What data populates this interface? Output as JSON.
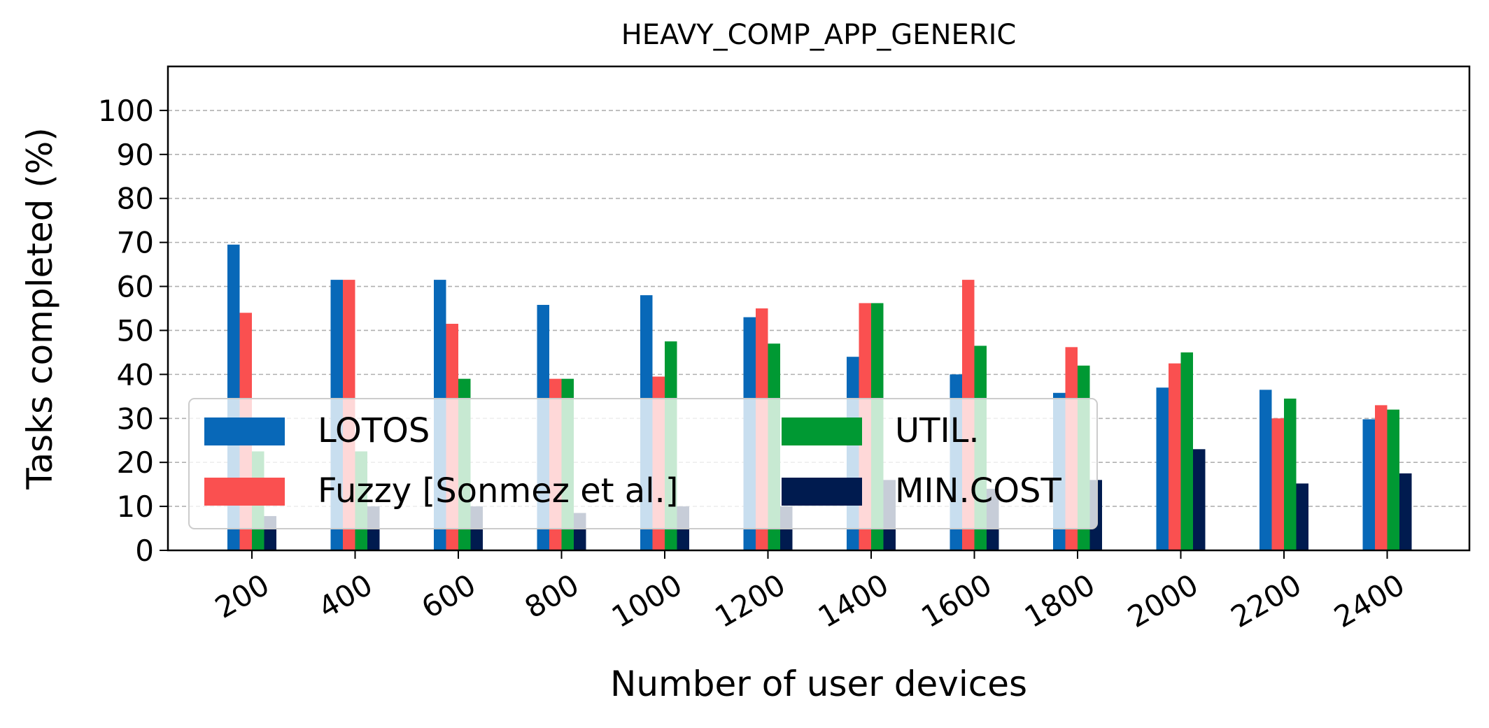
{
  "chart_data": {
    "type": "bar",
    "title": "HEAVY_COMP_APP_GENERIC",
    "xlabel": "Number of user devices",
    "ylabel": "Tasks completed (%)",
    "categories": [
      "200",
      "400",
      "600",
      "800",
      "1000",
      "1200",
      "1400",
      "1600",
      "1800",
      "2000",
      "2200",
      "2400"
    ],
    "ylim": [
      0,
      110
    ],
    "yticks": [
      0,
      10,
      20,
      30,
      40,
      50,
      60,
      70,
      80,
      90,
      100
    ],
    "grid": "y-dashed",
    "legend_position": "lower-left",
    "series": [
      {
        "name": "LOTOS",
        "color": "#0868b8",
        "values": [
          69.5,
          61.5,
          61.5,
          55.8,
          58.0,
          53.0,
          44.0,
          40.0,
          35.8,
          37.0,
          36.5,
          29.8
        ]
      },
      {
        "name": "Fuzzy [Sonmez et al.]",
        "color": "#fa5050",
        "values": [
          54.0,
          61.5,
          51.5,
          39.0,
          39.5,
          55.0,
          56.2,
          61.5,
          46.2,
          42.5,
          30.0,
          33.0
        ]
      },
      {
        "name": "UTIL.",
        "color": "#009933",
        "values": [
          22.5,
          22.5,
          39.0,
          39.0,
          47.5,
          47.0,
          56.2,
          46.5,
          42.0,
          45.0,
          34.5,
          32.0
        ]
      },
      {
        "name": "MIN.COST",
        "color": "#001b4f",
        "values": [
          7.8,
          10.0,
          10.0,
          8.5,
          10.0,
          10.0,
          16.0,
          14.0,
          16.0,
          23.0,
          15.2,
          17.5
        ]
      }
    ]
  }
}
